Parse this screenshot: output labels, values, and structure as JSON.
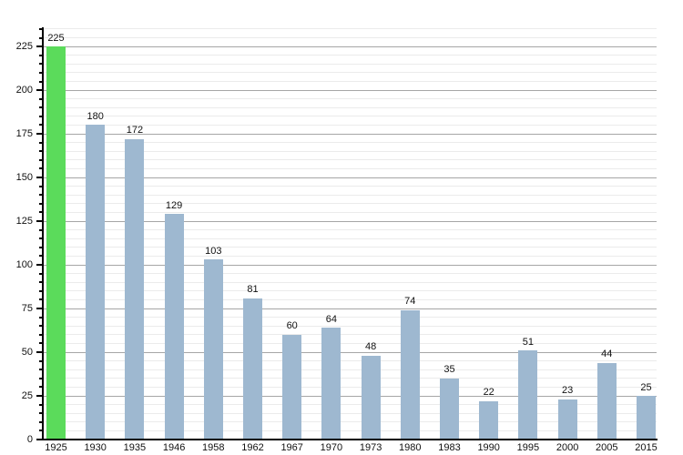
{
  "chart_data": {
    "type": "bar",
    "title": "",
    "xlabel": "",
    "ylabel": "",
    "categories": [
      "1925",
      "1930",
      "1935",
      "1946",
      "1958",
      "1962",
      "1967",
      "1970",
      "1973",
      "1980",
      "1983",
      "1990",
      "1995",
      "2000",
      "2005",
      "2015"
    ],
    "values": [
      225,
      180,
      172,
      129,
      103,
      81,
      60,
      64,
      48,
      74,
      35,
      22,
      51,
      23,
      44,
      25
    ],
    "value_labels": [
      "225",
      "180",
      "172",
      "129",
      "103",
      "81",
      "60",
      "64",
      "48",
      "74",
      "35",
      "22",
      "51",
      "23",
      "44",
      "25"
    ],
    "y_tick_labels": [
      "0",
      "25",
      "50",
      "75",
      "100",
      "125",
      "150",
      "175",
      "200",
      "225"
    ],
    "ylim": [
      0,
      236
    ],
    "y_major_step": 25,
    "y_minor_step": 5,
    "grid": "on",
    "legend_position": "none",
    "highlight_index": 0,
    "colors": {
      "bar": "#9eb8d0",
      "highlight_bar": "#5bdb5b",
      "grid_major": "#a6a6a6",
      "grid_minor": "#ebebeb",
      "axis": "#000000",
      "text": "#111111",
      "background": "#ffffff"
    }
  }
}
